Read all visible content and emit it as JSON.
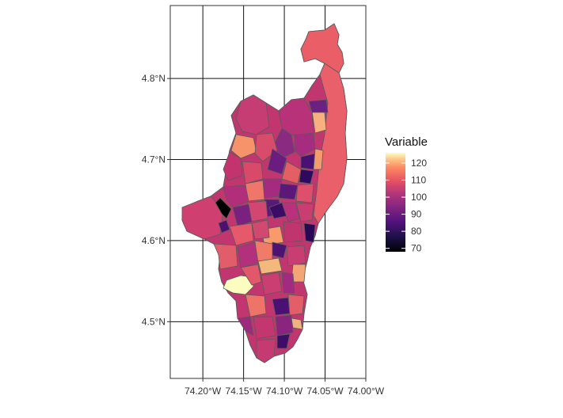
{
  "chart_data": {
    "type": "choropleth-map",
    "x_axis": {
      "ticks": [
        {
          "value": -74.2,
          "label": "74.20°W"
        },
        {
          "value": -74.15,
          "label": "74.15°W"
        },
        {
          "value": -74.1,
          "label": "74.10°W"
        },
        {
          "value": -74.05,
          "label": "74.05°W"
        },
        {
          "value": -74.0,
          "label": "74.00°W"
        }
      ],
      "range": [
        -74.24,
        -74.0
      ]
    },
    "y_axis": {
      "ticks": [
        {
          "value": 4.5,
          "label": "4.5°N"
        },
        {
          "value": 4.6,
          "label": "4.6°N"
        },
        {
          "value": 4.7,
          "label": "4.7°N"
        },
        {
          "value": 4.8,
          "label": "4.8°N"
        }
      ],
      "range": [
        4.43,
        4.89
      ]
    },
    "legend": {
      "title": "Variable",
      "position": "right",
      "palette": "magma",
      "range": [
        68,
        126
      ],
      "ticks": [
        {
          "value": 70,
          "label": "70"
        },
        {
          "value": 80,
          "label": "80"
        },
        {
          "value": 90,
          "label": "90"
        },
        {
          "value": 100,
          "label": "100"
        },
        {
          "value": 110,
          "label": "110"
        },
        {
          "value": 120,
          "label": "120"
        }
      ]
    },
    "grid": true
  }
}
